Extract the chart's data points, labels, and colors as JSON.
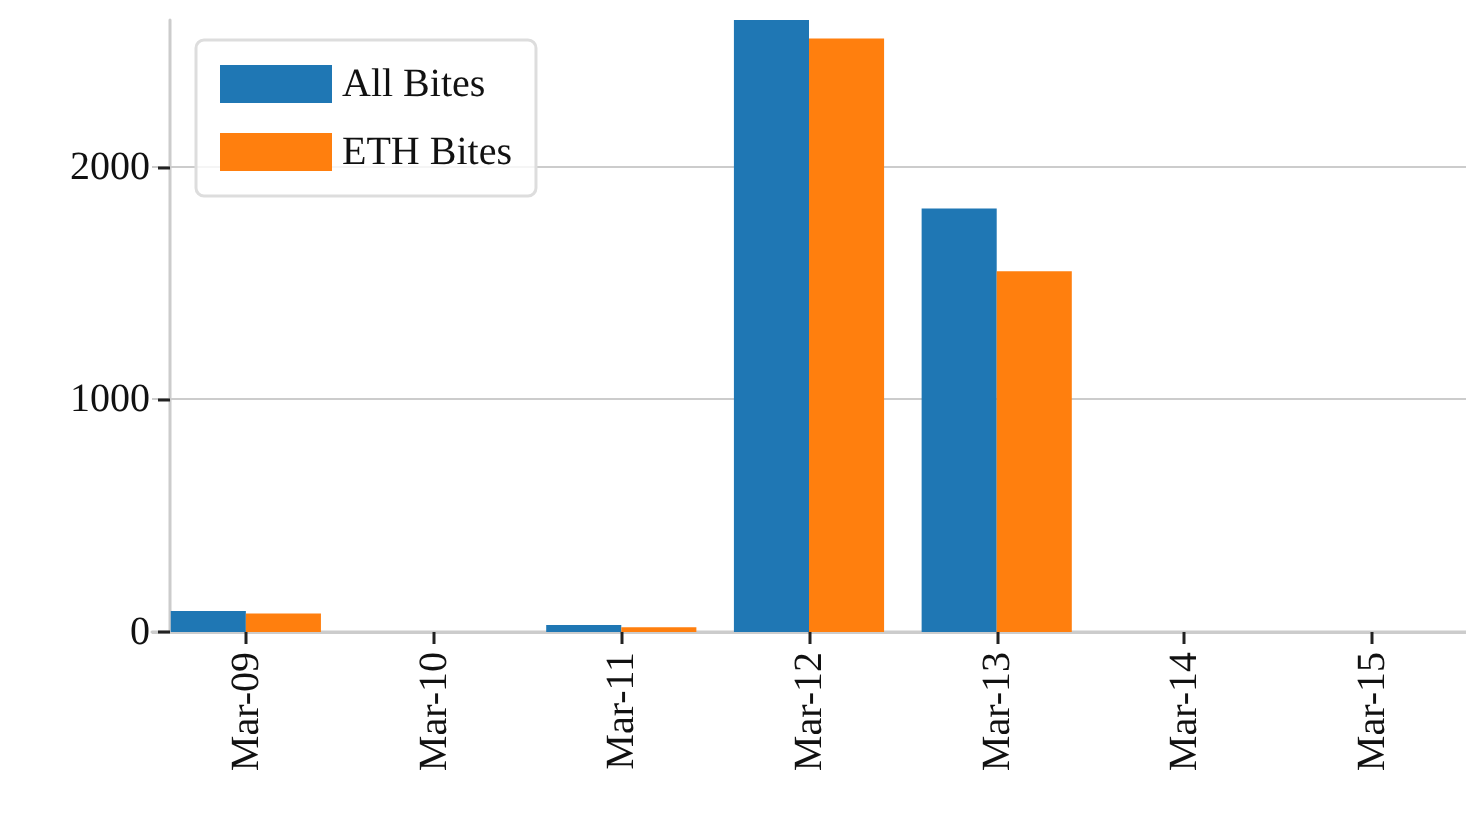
{
  "chart_data": {
    "type": "bar",
    "categories": [
      "Mar-09",
      "Mar-10",
      "Mar-11",
      "Mar-12",
      "Mar-13",
      "Mar-14",
      "Mar-15"
    ],
    "series": [
      {
        "name": "All Bites",
        "color": "#1f77b4",
        "values": [
          90,
          0,
          30,
          2630,
          1820,
          0,
          0
        ]
      },
      {
        "name": "ETH Bites",
        "color": "#ff7f0e",
        "values": [
          80,
          0,
          20,
          2550,
          1550,
          0,
          0
        ]
      }
    ],
    "ylim": [
      0,
      2630
    ],
    "yticks": [
      0,
      1000,
      2000
    ],
    "grid": "y",
    "legend": "top left"
  }
}
